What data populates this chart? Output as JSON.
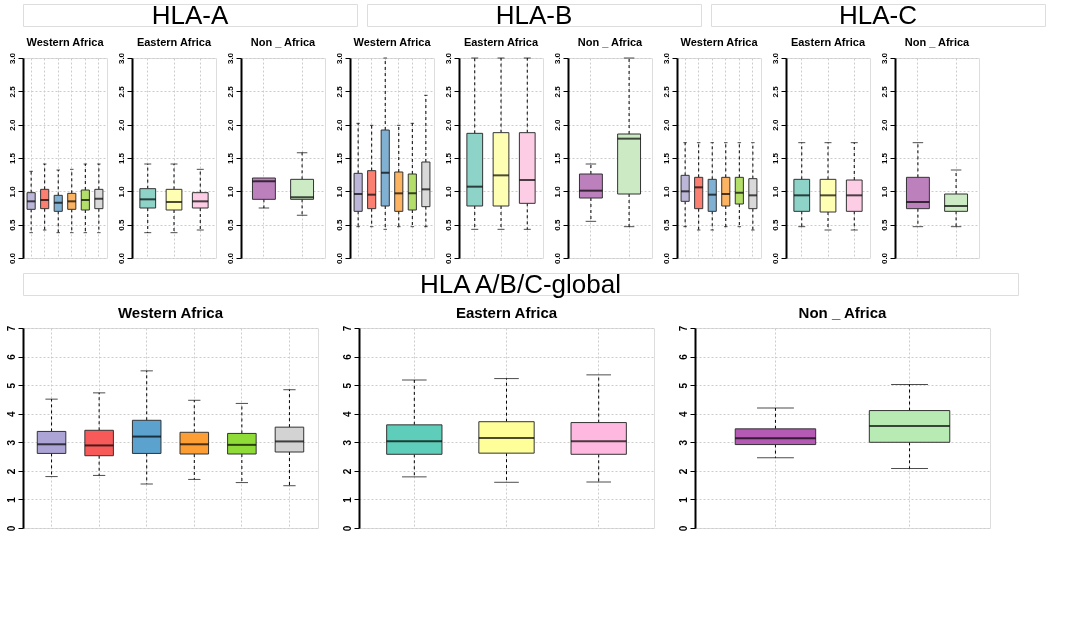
{
  "chart_data": [
    {
      "type": "box",
      "annotations": [
        "HLA-A"
      ],
      "title": "Western Africa",
      "categories": [
        null,
        null,
        null,
        null,
        null,
        null
      ],
      "colors": [
        "#bcb7d9",
        "#fb8072",
        "#80b1d3",
        "#fdb462",
        "#b3de69",
        "#d9d9d9"
      ],
      "boxes": [
        {
          "low": 0.38,
          "q1": 0.73,
          "median": 0.85,
          "q3": 0.98,
          "high": 1.3
        },
        {
          "low": 0.42,
          "q1": 0.74,
          "median": 0.87,
          "q3": 1.03,
          "high": 1.41
        },
        {
          "low": 0.38,
          "q1": 0.7,
          "median": 0.83,
          "q3": 0.94,
          "high": 1.32
        },
        {
          "low": 0.38,
          "q1": 0.73,
          "median": 0.85,
          "q3": 0.97,
          "high": 1.33
        },
        {
          "low": 0.38,
          "q1": 0.72,
          "median": 0.87,
          "q3": 1.02,
          "high": 1.41
        },
        {
          "low": 0.38,
          "q1": 0.74,
          "median": 0.89,
          "q3": 1.03,
          "high": 1.41
        }
      ],
      "ylim": [
        0,
        3
      ],
      "yticks": [
        {
          "value": 0,
          "label": "0.0"
        },
        {
          "value": 0.5,
          "label": "0.5"
        },
        {
          "value": 1,
          "label": "1.0"
        },
        {
          "value": 1.5,
          "label": "1.5"
        },
        {
          "value": 2,
          "label": "2.0"
        },
        {
          "value": 2.5,
          "label": "2.5"
        },
        {
          "value": 3,
          "label": "3.0"
        }
      ],
      "grid": true,
      "tick_labels": "y"
    },
    {
      "type": "box",
      "title": "Eastern Africa",
      "categories": [
        null,
        null,
        null
      ],
      "colors": [
        "#8dd3c7",
        "#ffffb3",
        "#fccde5"
      ],
      "boxes": [
        {
          "low": 0.38,
          "q1": 0.75,
          "median": 0.88,
          "q3": 1.04,
          "high": 1.41
        },
        {
          "low": 0.38,
          "q1": 0.72,
          "median": 0.84,
          "q3": 1.03,
          "high": 1.41
        },
        {
          "low": 0.42,
          "q1": 0.75,
          "median": 0.85,
          "q3": 0.98,
          "high": 1.33
        }
      ],
      "ylim": [
        0,
        3
      ],
      "yticks": [
        {
          "value": 0,
          "label": "0.0"
        },
        {
          "value": 0.5,
          "label": "0.5"
        },
        {
          "value": 1,
          "label": "1.0"
        },
        {
          "value": 1.5,
          "label": "1.5"
        },
        {
          "value": 2,
          "label": "2.0"
        },
        {
          "value": 2.5,
          "label": "2.5"
        },
        {
          "value": 3,
          "label": "3.0"
        }
      ],
      "grid": true,
      "tick_labels": "y"
    },
    {
      "type": "box",
      "title": "Non _ Africa",
      "categories": [
        null,
        null
      ],
      "colors": [
        "#bc80bd",
        "#ccebc5"
      ],
      "boxes": [
        {
          "low": 0.75,
          "q1": 0.88,
          "median": 1.15,
          "q3": 1.2,
          "high": 1.2
        },
        {
          "low": 0.64,
          "q1": 0.88,
          "median": 0.91,
          "q3": 1.18,
          "high": 1.58
        }
      ],
      "ylim": [
        0,
        3
      ],
      "yticks": [
        {
          "value": 0,
          "label": "0.0"
        },
        {
          "value": 0.5,
          "label": "0.5"
        },
        {
          "value": 1,
          "label": "1.0"
        },
        {
          "value": 1.5,
          "label": "1.5"
        },
        {
          "value": 2,
          "label": "2.0"
        },
        {
          "value": 2.5,
          "label": "2.5"
        },
        {
          "value": 3,
          "label": "3.0"
        }
      ],
      "grid": true,
      "tick_labels": "y"
    },
    {
      "type": "box",
      "annotations": [
        "HLA-B"
      ],
      "title": "Western Africa",
      "categories": [
        null,
        null,
        null,
        null,
        null,
        null
      ],
      "colors": [
        "#bcb7d9",
        "#fb8072",
        "#80b1d3",
        "#fdb462",
        "#b3de69",
        "#d9d9d9"
      ],
      "boxes": [
        {
          "low": 0.47,
          "q1": 0.7,
          "median": 0.96,
          "q3": 1.27,
          "high": 2.02
        },
        {
          "low": 0.47,
          "q1": 0.74,
          "median": 0.95,
          "q3": 1.31,
          "high": 1.99
        },
        {
          "low": 0.43,
          "q1": 0.78,
          "median": 1.28,
          "q3": 1.92,
          "high": 3.0
        },
        {
          "low": 0.47,
          "q1": 0.7,
          "median": 0.97,
          "q3": 1.29,
          "high": 1.99
        },
        {
          "low": 0.47,
          "q1": 0.72,
          "median": 0.97,
          "q3": 1.26,
          "high": 2.02
        },
        {
          "low": 0.47,
          "q1": 0.77,
          "median": 1.03,
          "q3": 1.44,
          "high": 2.44
        }
      ],
      "ylim": [
        0,
        3
      ],
      "yticks": [
        {
          "value": 0,
          "label": "0.0"
        },
        {
          "value": 0.5,
          "label": "0.5"
        },
        {
          "value": 1,
          "label": "1.0"
        },
        {
          "value": 1.5,
          "label": "1.5"
        },
        {
          "value": 2,
          "label": "2.0"
        },
        {
          "value": 2.5,
          "label": "2.5"
        },
        {
          "value": 3,
          "label": "3.0"
        }
      ],
      "grid": true,
      "tick_labels": "y"
    },
    {
      "type": "box",
      "title": "Eastern Africa",
      "categories": [
        null,
        null,
        null
      ],
      "colors": [
        "#8dd3c7",
        "#ffffb3",
        "#fccde5"
      ],
      "boxes": [
        {
          "low": 0.43,
          "q1": 0.78,
          "median": 1.07,
          "q3": 1.87,
          "high": 3.0
        },
        {
          "low": 0.43,
          "q1": 0.78,
          "median": 1.24,
          "q3": 1.88,
          "high": 3.0
        },
        {
          "low": 0.43,
          "q1": 0.82,
          "median": 1.17,
          "q3": 1.88,
          "high": 3.0
        }
      ],
      "ylim": [
        0,
        3
      ],
      "yticks": [
        {
          "value": 0,
          "label": "0.0"
        },
        {
          "value": 0.5,
          "label": "0.5"
        },
        {
          "value": 1,
          "label": "1.0"
        },
        {
          "value": 1.5,
          "label": "1.5"
        },
        {
          "value": 2,
          "label": "2.0"
        },
        {
          "value": 2.5,
          "label": "2.5"
        },
        {
          "value": 3,
          "label": "3.0"
        }
      ],
      "grid": true,
      "tick_labels": "y"
    },
    {
      "type": "box",
      "title": "Non _ Africa",
      "categories": [
        null,
        null
      ],
      "colors": [
        "#bc80bd",
        "#ccebc5"
      ],
      "boxes": [
        {
          "low": 0.55,
          "q1": 0.9,
          "median": 1.01,
          "q3": 1.26,
          "high": 1.41
        },
        {
          "low": 0.47,
          "q1": 0.96,
          "median": 1.79,
          "q3": 1.86,
          "high": 3.0
        }
      ],
      "ylim": [
        0,
        3
      ],
      "yticks": [
        {
          "value": 0,
          "label": "0.0"
        },
        {
          "value": 0.5,
          "label": "0.5"
        },
        {
          "value": 1,
          "label": "1.0"
        },
        {
          "value": 1.5,
          "label": "1.5"
        },
        {
          "value": 2,
          "label": "2.0"
        },
        {
          "value": 2.5,
          "label": "2.5"
        },
        {
          "value": 3,
          "label": "3.0"
        }
      ],
      "grid": true,
      "tick_labels": "y"
    },
    {
      "type": "box",
      "annotations": [
        "HLA-C"
      ],
      "title": "Western Africa",
      "categories": [
        null,
        null,
        null,
        null,
        null,
        null
      ],
      "colors": [
        "#bcb7d9",
        "#fb8072",
        "#80b1d3",
        "#fdb462",
        "#b3de69",
        "#d9d9d9"
      ],
      "boxes": [
        {
          "low": 0.47,
          "q1": 0.85,
          "median": 1.0,
          "q3": 1.24,
          "high": 1.73
        },
        {
          "low": 0.42,
          "q1": 0.74,
          "median": 1.06,
          "q3": 1.21,
          "high": 1.73
        },
        {
          "low": 0.42,
          "q1": 0.7,
          "median": 0.95,
          "q3": 1.18,
          "high": 1.73
        },
        {
          "low": 0.47,
          "q1": 0.78,
          "median": 0.96,
          "q3": 1.21,
          "high": 1.73
        },
        {
          "low": 0.47,
          "q1": 0.81,
          "median": 0.98,
          "q3": 1.21,
          "high": 1.73
        },
        {
          "low": 0.42,
          "q1": 0.74,
          "median": 0.94,
          "q3": 1.19,
          "high": 1.73
        }
      ],
      "ylim": [
        0,
        3
      ],
      "yticks": [
        {
          "value": 0,
          "label": "0.0"
        },
        {
          "value": 0.5,
          "label": "0.5"
        },
        {
          "value": 1,
          "label": "1.0"
        },
        {
          "value": 1.5,
          "label": "1.5"
        },
        {
          "value": 2,
          "label": "2.0"
        },
        {
          "value": 2.5,
          "label": "2.5"
        },
        {
          "value": 3,
          "label": "3.0"
        }
      ],
      "grid": true,
      "tick_labels": "y"
    },
    {
      "type": "box",
      "title": "Eastern Africa",
      "categories": [
        null,
        null,
        null
      ],
      "colors": [
        "#8dd3c7",
        "#ffffb3",
        "#fccde5"
      ],
      "boxes": [
        {
          "low": 0.47,
          "q1": 0.7,
          "median": 0.94,
          "q3": 1.18,
          "high": 1.73
        },
        {
          "low": 0.42,
          "q1": 0.69,
          "median": 0.94,
          "q3": 1.18,
          "high": 1.73
        },
        {
          "low": 0.42,
          "q1": 0.7,
          "median": 0.94,
          "q3": 1.17,
          "high": 1.73
        }
      ],
      "ylim": [
        0,
        3
      ],
      "yticks": [
        {
          "value": 0,
          "label": "0.0"
        },
        {
          "value": 0.5,
          "label": "0.5"
        },
        {
          "value": 1,
          "label": "1.0"
        },
        {
          "value": 1.5,
          "label": "1.5"
        },
        {
          "value": 2,
          "label": "2.0"
        },
        {
          "value": 2.5,
          "label": "2.5"
        },
        {
          "value": 3,
          "label": "3.0"
        }
      ],
      "grid": true,
      "tick_labels": "y"
    },
    {
      "type": "box",
      "title": "Non _ Africa",
      "categories": [
        null,
        null
      ],
      "colors": [
        "#bc80bd",
        "#ccebc5"
      ],
      "boxes": [
        {
          "low": 0.47,
          "q1": 0.74,
          "median": 0.84,
          "q3": 1.21,
          "high": 1.73
        },
        {
          "low": 0.47,
          "q1": 0.7,
          "median": 0.78,
          "q3": 0.96,
          "high": 1.32
        }
      ],
      "ylim": [
        0,
        3
      ],
      "yticks": [
        {
          "value": 0,
          "label": "0.0"
        },
        {
          "value": 0.5,
          "label": "0.5"
        },
        {
          "value": 1,
          "label": "1.0"
        },
        {
          "value": 1.5,
          "label": "1.5"
        },
        {
          "value": 2,
          "label": "2.0"
        },
        {
          "value": 2.5,
          "label": "2.5"
        },
        {
          "value": 3,
          "label": "3.0"
        }
      ],
      "grid": true,
      "tick_labels": "y"
    },
    {
      "type": "box",
      "annotations": [
        "HLA A/B/C-global"
      ],
      "title": "Western Africa",
      "categories": [
        null,
        null,
        null,
        null,
        null,
        null
      ],
      "colors": [
        "#aca4d4",
        "#f85a5a",
        "#5ca2cf",
        "#fd9e35",
        "#8fdc38",
        "#d3d3d3"
      ],
      "boxes": [
        {
          "low": 1.8,
          "q1": 2.61,
          "median": 2.93,
          "q3": 3.38,
          "high": 4.51
        },
        {
          "low": 1.84,
          "q1": 2.53,
          "median": 2.89,
          "q3": 3.42,
          "high": 4.73
        },
        {
          "low": 1.54,
          "q1": 2.61,
          "median": 3.2,
          "q3": 3.77,
          "high": 5.5
        },
        {
          "low": 1.7,
          "q1": 2.59,
          "median": 2.93,
          "q3": 3.35,
          "high": 4.47
        },
        {
          "low": 1.59,
          "q1": 2.59,
          "median": 2.91,
          "q3": 3.31,
          "high": 4.36
        },
        {
          "low": 1.48,
          "q1": 2.66,
          "median": 3.03,
          "q3": 3.53,
          "high": 4.84
        }
      ],
      "ylim": [
        0,
        7
      ],
      "yticks": [
        0,
        1,
        2,
        3,
        4,
        5,
        6,
        7
      ],
      "grid": true,
      "tick_labels": "y"
    },
    {
      "type": "box",
      "title": "Eastern Africa",
      "categories": [
        null,
        null,
        null
      ],
      "colors": [
        "#5ecdb9",
        "#ffff99",
        "#ffb9e0"
      ],
      "boxes": [
        {
          "low": 1.79,
          "q1": 2.58,
          "median": 3.04,
          "q3": 3.61,
          "high": 5.18
        },
        {
          "low": 1.6,
          "q1": 2.62,
          "median": 3.15,
          "q3": 3.72,
          "high": 5.23
        },
        {
          "low": 1.61,
          "q1": 2.58,
          "median": 3.04,
          "q3": 3.69,
          "high": 5.36
        }
      ],
      "ylim": [
        0,
        7
      ],
      "yticks": [
        0,
        1,
        2,
        3,
        4,
        5,
        6,
        7
      ],
      "grid": true,
      "tick_labels": "y"
    },
    {
      "type": "box",
      "title": "Non _ Africa",
      "categories": [
        null,
        null
      ],
      "colors": [
        "#b45ab4",
        "#b8eab4"
      ],
      "boxes": [
        {
          "low": 2.46,
          "q1": 2.92,
          "median": 3.14,
          "q3": 3.47,
          "high": 4.2
        },
        {
          "low": 2.08,
          "q1": 3.0,
          "median": 3.57,
          "q3": 4.11,
          "high": 5.02
        }
      ],
      "ylim": [
        0,
        7
      ],
      "yticks": [
        0,
        1,
        2,
        3,
        4,
        5,
        6,
        7
      ],
      "grid": true,
      "tick_labels": "y"
    }
  ]
}
